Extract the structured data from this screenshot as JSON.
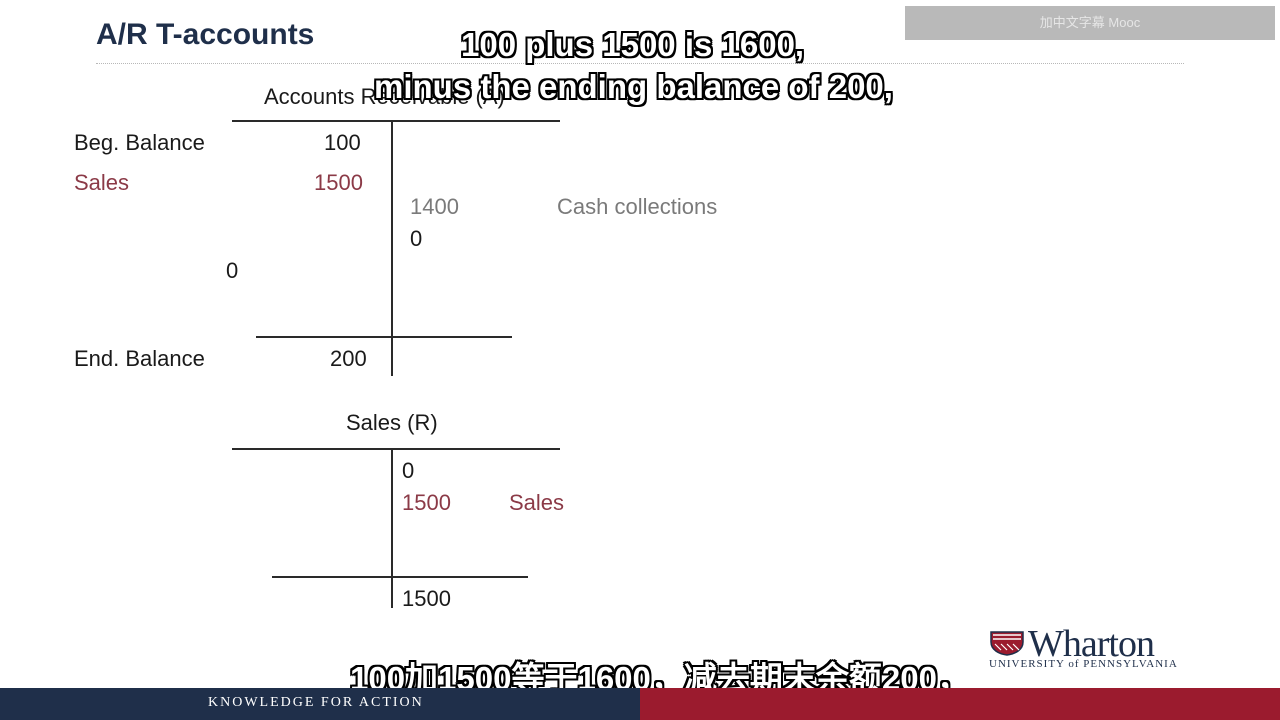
{
  "slide": {
    "title": "A/R T-accounts",
    "watermark": "加中文字幕 Mooc"
  },
  "subtitles": {
    "line1": "100 plus 1500 is 1600,",
    "line2": "minus the ending balance of 200,",
    "chinese": "100加1500等于1600，减去期末余额200，"
  },
  "ar_account": {
    "header": "Accounts Receivable (A)",
    "beg_label": "Beg. Balance",
    "beg_value": "100",
    "sales_label": "Sales",
    "sales_value": "1500",
    "credit_value": "1400",
    "credit_label": "Cash collections",
    "credit_zero": "0",
    "debit_zero": "0",
    "end_label": "End. Balance",
    "end_value": "200"
  },
  "sales_account": {
    "header": "Sales (R)",
    "credit_zero": "0",
    "credit_value": "1500",
    "credit_label": "Sales",
    "total": "1500"
  },
  "footer": {
    "tagline": "KNOWLEDGE FOR ACTION",
    "logo_word": "Wharton",
    "logo_sub": "UNIVERSITY of PENNSYLVANIA"
  },
  "colors": {
    "navy": "#1f2f4a",
    "crimson": "#9b1b2e",
    "sales_red": "#8b3a47"
  }
}
